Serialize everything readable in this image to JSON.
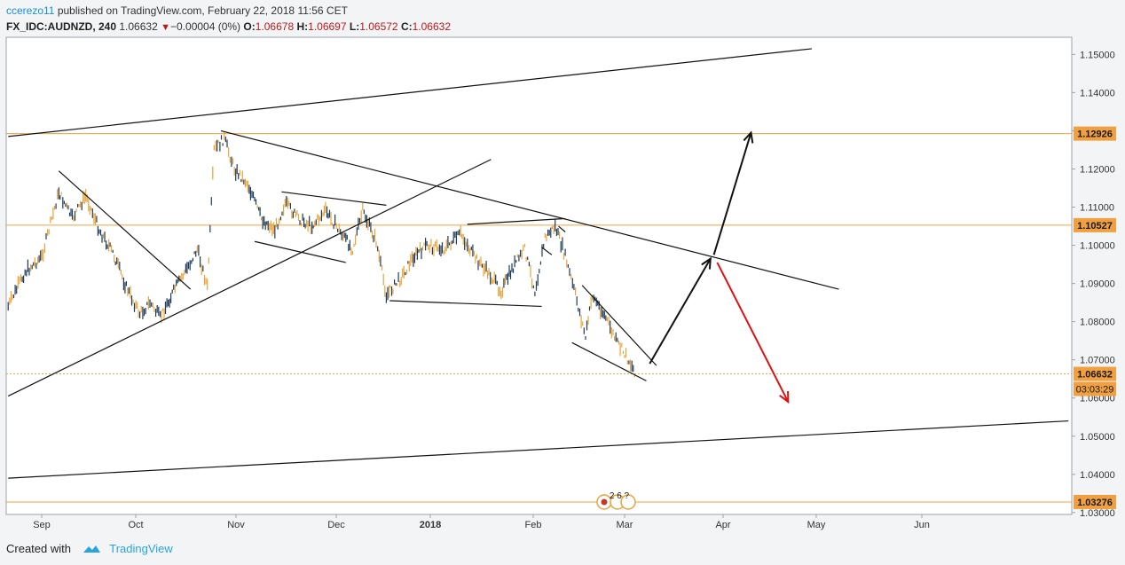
{
  "header": {
    "author": "ccerezo11",
    "published_text": "published on TradingView.com, February 22, 2018 11:56 CET",
    "symbol": "FX_IDC:AUDNZD, 240",
    "last": "1.06632",
    "change_arrow": "down-triangle-icon",
    "change": "−0.00004 (0%)",
    "o_label": "O:",
    "o_value": "1.06678",
    "h_label": "H:",
    "h_value": "1.06697",
    "l_label": "L:",
    "l_value": "1.06572",
    "c_label": "C:",
    "c_value": "1.06632"
  },
  "footer": {
    "created_with": "Created with",
    "brand": "TradingView",
    "brand_icon": "tradingview-cloud-icon"
  },
  "chart_data": {
    "type": "line",
    "series_style": "candlestick-bars",
    "x_ticks": [
      "Sep",
      "Oct",
      "Nov",
      "Dec",
      "2018",
      "Feb",
      "Mar",
      "Apr",
      "May",
      "Jun"
    ],
    "y_ticks": [
      "1.15000",
      "1.14000",
      "1.13000",
      "1.12000",
      "1.11000",
      "1.10000",
      "1.09000",
      "1.08000",
      "1.07000",
      "1.06000",
      "1.05000",
      "1.04000",
      "1.03000"
    ],
    "ylim": [
      1.0295,
      1.1545
    ],
    "price_levels": [
      {
        "label": "1.12926",
        "value": 1.12926,
        "color": "#f0a040"
      },
      {
        "label": "1.10527",
        "value": 1.10527,
        "color": "#f0a040"
      },
      {
        "label": "1.06632",
        "value": 1.06632,
        "color": "#f0a040",
        "dotted": true
      },
      {
        "label": "1.03276",
        "value": 1.03276,
        "color": "#f0a040"
      }
    ],
    "countdown": "03:03:29",
    "events_badge": "2 6 ?",
    "price_path": [
      [
        "2017-08-20",
        1.084
      ],
      [
        "2017-08-25",
        1.093
      ],
      [
        "2017-08-30",
        1.097
      ],
      [
        "2017-09-04",
        1.114
      ],
      [
        "2017-09-08",
        1.107
      ],
      [
        "2017-09-12",
        1.113
      ],
      [
        "2017-09-16",
        1.104
      ],
      [
        "2017-09-20",
        1.098
      ],
      [
        "2017-09-24",
        1.089
      ],
      [
        "2017-09-28",
        1.082
      ],
      [
        "2017-10-01",
        1.085
      ],
      [
        "2017-10-04",
        1.081
      ],
      [
        "2017-10-08",
        1.088
      ],
      [
        "2017-10-12",
        1.094
      ],
      [
        "2017-10-15",
        1.099
      ],
      [
        "2017-10-18",
        1.089
      ],
      [
        "2017-10-20",
        1.125
      ],
      [
        "2017-10-23",
        1.128
      ],
      [
        "2017-10-26",
        1.12
      ],
      [
        "2017-10-30",
        1.116
      ],
      [
        "2017-11-03",
        1.107
      ],
      [
        "2017-11-07",
        1.104
      ],
      [
        "2017-11-10",
        1.111
      ],
      [
        "2017-11-14",
        1.107
      ],
      [
        "2017-11-18",
        1.105
      ],
      [
        "2017-11-22",
        1.109
      ],
      [
        "2017-11-26",
        1.104
      ],
      [
        "2017-11-30",
        1.099
      ],
      [
        "2017-12-03",
        1.109
      ],
      [
        "2017-12-07",
        1.101
      ],
      [
        "2017-12-10",
        1.087
      ],
      [
        "2017-12-14",
        1.091
      ],
      [
        "2017-12-18",
        1.097
      ],
      [
        "2017-12-22",
        1.1
      ],
      [
        "2017-12-27",
        1.099
      ],
      [
        "2018-01-01",
        1.103
      ],
      [
        "2018-01-05",
        1.097
      ],
      [
        "2018-01-09",
        1.093
      ],
      [
        "2018-01-13",
        1.088
      ],
      [
        "2018-01-17",
        1.095
      ],
      [
        "2018-01-20",
        1.099
      ],
      [
        "2018-01-23",
        1.088
      ],
      [
        "2018-01-26",
        1.102
      ],
      [
        "2018-01-29",
        1.105
      ],
      [
        "2018-02-01",
        1.097
      ],
      [
        "2018-02-04",
        1.087
      ],
      [
        "2018-02-07",
        1.076
      ],
      [
        "2018-02-09",
        1.087
      ],
      [
        "2018-02-13",
        1.081
      ],
      [
        "2018-02-16",
        1.075
      ],
      [
        "2018-02-19",
        1.071
      ],
      [
        "2018-02-22",
        1.0663
      ]
    ],
    "drawn_lines": [
      {
        "name": "upper-channel-line",
        "from": [
          "2017-08-20",
          1.1285
        ],
        "to": [
          "2018-04-15",
          1.1515
        ],
        "color": "#111"
      },
      {
        "name": "lower-channel-line",
        "from": [
          "2017-08-20",
          1.039
        ],
        "to": [
          "2018-06-30",
          1.054
        ],
        "color": "#111"
      },
      {
        "name": "rising-trendline",
        "from": [
          "2017-08-20",
          1.0605
        ],
        "to": [
          "2018-01-10",
          1.1225
        ],
        "color": "#111"
      },
      {
        "name": "descending-resistance-line",
        "from": [
          "2017-10-22",
          1.13
        ],
        "to": [
          "2018-04-23",
          1.0885
        ],
        "color": "#111"
      },
      {
        "name": "sep-downtrend-line",
        "from": [
          "2017-09-04",
          1.1195
        ],
        "to": [
          "2017-10-13",
          1.0885
        ],
        "color": "#111"
      },
      {
        "name": "nov-flag-top",
        "from": [
          "2017-11-09",
          1.114
        ],
        "to": [
          "2017-12-10",
          1.1105
        ],
        "color": "#111"
      },
      {
        "name": "nov-flag-bottom",
        "from": [
          "2017-11-01",
          1.101
        ],
        "to": [
          "2017-11-28",
          1.0955
        ],
        "color": "#111"
      },
      {
        "name": "dec-low-line",
        "from": [
          "2017-12-11",
          1.0855
        ],
        "to": [
          "2018-01-25",
          1.084
        ],
        "color": "#111"
      },
      {
        "name": "jan-high-line",
        "from": [
          "2018-01-03",
          1.1055
        ],
        "to": [
          "2018-02-01",
          1.107
        ],
        "color": "#111"
      },
      {
        "name": "feb-channel-top",
        "from": [
          "2018-02-06",
          1.0895
        ],
        "to": [
          "2018-02-28",
          1.0685
        ],
        "color": "#111"
      },
      {
        "name": "feb-channel-bottom",
        "from": [
          "2018-02-03",
          1.0745
        ],
        "to": [
          "2018-02-25",
          1.0645
        ],
        "color": "#111"
      },
      {
        "name": "jan-small-mark",
        "from": [
          "2018-01-25",
          1.0995
        ],
        "to": [
          "2018-01-28",
          1.0975
        ],
        "color": "#111"
      },
      {
        "name": "jan-small-wedge",
        "from": [
          "2018-01-30",
          1.105
        ],
        "to": [
          "2018-02-01",
          1.1035
        ],
        "color": "#111"
      }
    ],
    "arrows": [
      {
        "name": "projection-up-arrow-1",
        "from": [
          "2018-02-26",
          1.069
        ],
        "to": [
          "2018-03-16",
          1.0965
        ],
        "color": "#111"
      },
      {
        "name": "projection-up-arrow-2",
        "from": [
          "2018-03-17",
          1.0975
        ],
        "to": [
          "2018-03-28",
          1.1295
        ],
        "color": "#111"
      },
      {
        "name": "projection-down-arrow",
        "from": [
          "2018-03-18",
          1.0955
        ],
        "to": [
          "2018-04-08",
          1.059
        ],
        "color": "#e01010"
      }
    ]
  }
}
